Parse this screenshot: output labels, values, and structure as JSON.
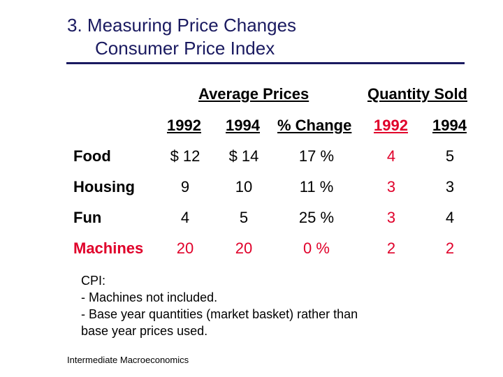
{
  "title": {
    "line1": "3.  Measuring Price Changes",
    "line2": "Consumer Price Index"
  },
  "table": {
    "group_headers": {
      "prices": "Average Prices",
      "quantity": "Quantity Sold"
    },
    "column_headers": [
      "1992",
      "1994",
      "% Change",
      "1992",
      "1994"
    ],
    "rows": [
      {
        "label": "Food",
        "cells": [
          "$ 12",
          "$ 14",
          "17 %",
          "4",
          "5"
        ]
      },
      {
        "label": "Housing",
        "cells": [
          "9",
          "10",
          "11 %",
          "3",
          "3"
        ]
      },
      {
        "label": "Fun",
        "cells": [
          "4",
          "5",
          "25 %",
          "3",
          "4"
        ]
      },
      {
        "label": "Machines",
        "cells": [
          "20",
          "20",
          "0 %",
          "2",
          "2"
        ]
      }
    ]
  },
  "notes": {
    "heading": "CPI:",
    "line1": "- Machines not included.",
    "line2": "- Base year quantities (market basket) rather than",
    "line3": "base year prices used."
  },
  "footer": "Intermediate  Macroeconomics",
  "colors": {
    "title": "#1a1a60",
    "highlight": "#e0002a"
  }
}
